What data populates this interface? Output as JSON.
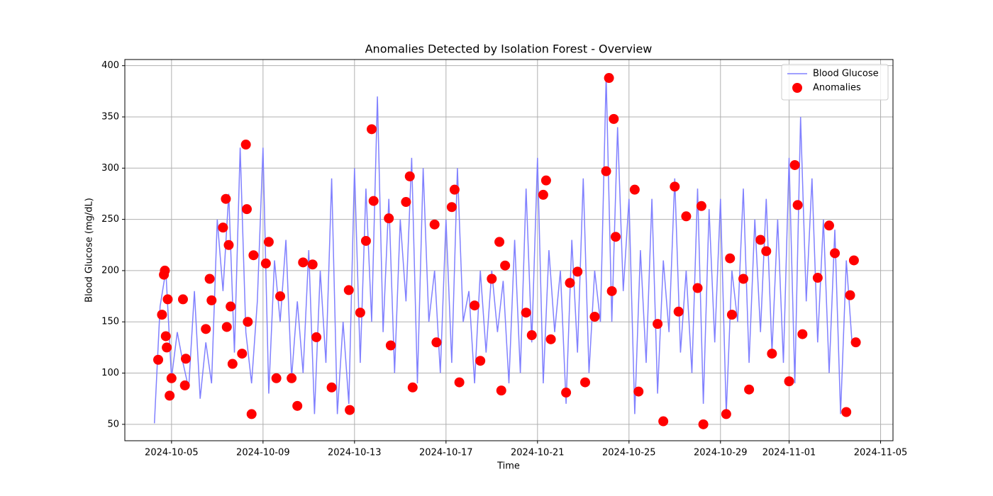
{
  "chart_data": {
    "type": "line",
    "title": "Anomalies Detected by Isolation Forest - Overview",
    "x_label": "Time",
    "y_label": "Blood Glucose (mg/dL)",
    "xlim": [
      "2024-10-02T23:00",
      "2024-11-05T13:00"
    ],
    "ylim": [
      34,
      406
    ],
    "xticks": [
      "2024-10-05",
      "2024-10-09",
      "2024-10-13",
      "2024-10-17",
      "2024-10-21",
      "2024-10-25",
      "2024-10-29",
      "2024-11-01",
      "2024-11-05"
    ],
    "yticks": [
      50,
      100,
      150,
      200,
      250,
      300,
      350,
      400
    ],
    "grid": true,
    "legend": "upper right",
    "series": [
      {
        "name": "Blood Glucose",
        "type": "line",
        "color": "#8080ff",
        "x": [
          "2024-10-04T06:00",
          "2024-10-04T12:00",
          "2024-10-04T18:00",
          "2024-10-05T00:00",
          "2024-10-05T06:00",
          "2024-10-05T12:00",
          "2024-10-05T18:00",
          "2024-10-06T00:00",
          "2024-10-06T06:00",
          "2024-10-06T12:00",
          "2024-10-06T18:00",
          "2024-10-07T00:00",
          "2024-10-07T06:00",
          "2024-10-07T12:00",
          "2024-10-07T18:00",
          "2024-10-08T00:00",
          "2024-10-08T06:00",
          "2024-10-08T12:00",
          "2024-10-08T18:00",
          "2024-10-09T00:00",
          "2024-10-09T06:00",
          "2024-10-09T12:00",
          "2024-10-09T18:00",
          "2024-10-10T00:00",
          "2024-10-10T06:00",
          "2024-10-10T12:00",
          "2024-10-10T18:00",
          "2024-10-11T00:00",
          "2024-10-11T06:00",
          "2024-10-11T12:00",
          "2024-10-11T18:00",
          "2024-10-12T00:00",
          "2024-10-12T06:00",
          "2024-10-12T12:00",
          "2024-10-12T18:00",
          "2024-10-13T00:00",
          "2024-10-13T06:00",
          "2024-10-13T12:00",
          "2024-10-13T18:00",
          "2024-10-14T00:00",
          "2024-10-14T06:00",
          "2024-10-14T12:00",
          "2024-10-14T18:00",
          "2024-10-15T00:00",
          "2024-10-15T06:00",
          "2024-10-15T12:00",
          "2024-10-15T18:00",
          "2024-10-16T00:00",
          "2024-10-16T06:00",
          "2024-10-16T12:00",
          "2024-10-16T18:00",
          "2024-10-17T00:00",
          "2024-10-17T06:00",
          "2024-10-17T12:00",
          "2024-10-17T18:00",
          "2024-10-18T00:00",
          "2024-10-18T06:00",
          "2024-10-18T12:00",
          "2024-10-18T18:00",
          "2024-10-19T00:00",
          "2024-10-19T06:00",
          "2024-10-19T12:00",
          "2024-10-19T18:00",
          "2024-10-20T00:00",
          "2024-10-20T06:00",
          "2024-10-20T12:00",
          "2024-10-20T18:00",
          "2024-10-21T00:00",
          "2024-10-21T06:00",
          "2024-10-21T12:00",
          "2024-10-21T18:00",
          "2024-10-22T00:00",
          "2024-10-22T06:00",
          "2024-10-22T12:00",
          "2024-10-22T18:00",
          "2024-10-23T00:00",
          "2024-10-23T06:00",
          "2024-10-23T12:00",
          "2024-10-23T18:00",
          "2024-10-24T00:00",
          "2024-10-24T06:00",
          "2024-10-24T12:00",
          "2024-10-24T18:00",
          "2024-10-25T00:00",
          "2024-10-25T06:00",
          "2024-10-25T12:00",
          "2024-10-25T18:00",
          "2024-10-26T00:00",
          "2024-10-26T06:00",
          "2024-10-26T12:00",
          "2024-10-26T18:00",
          "2024-10-27T00:00",
          "2024-10-27T06:00",
          "2024-10-27T12:00",
          "2024-10-27T18:00",
          "2024-10-28T00:00",
          "2024-10-28T06:00",
          "2024-10-28T12:00",
          "2024-10-28T18:00",
          "2024-10-29T00:00",
          "2024-10-29T06:00",
          "2024-10-29T12:00",
          "2024-10-29T18:00",
          "2024-10-30T00:00",
          "2024-10-30T06:00",
          "2024-10-30T12:00",
          "2024-10-30T18:00",
          "2024-10-31T00:00",
          "2024-10-31T06:00",
          "2024-10-31T12:00",
          "2024-10-31T18:00",
          "2024-11-01T00:00",
          "2024-11-01T06:00",
          "2024-11-01T12:00",
          "2024-11-01T18:00",
          "2024-11-02T00:00",
          "2024-11-02T06:00",
          "2024-11-02T12:00",
          "2024-11-02T18:00",
          "2024-11-03T00:00",
          "2024-11-03T06:00",
          "2024-11-03T12:00",
          "2024-11-03T18:00"
        ],
        "values": [
          51,
          165,
          200,
          95,
          140,
          110,
          85,
          180,
          75,
          130,
          90,
          250,
          180,
          275,
          120,
          320,
          140,
          90,
          170,
          320,
          80,
          210,
          150,
          230,
          95,
          170,
          100,
          220,
          60,
          200,
          110,
          290,
          60,
          150,
          70,
          300,
          110,
          280,
          150,
          370,
          140,
          270,
          100,
          250,
          170,
          310,
          90,
          300,
          150,
          200,
          100,
          250,
          110,
          300,
          150,
          180,
          90,
          200,
          120,
          200,
          140,
          190,
          90,
          230,
          100,
          280,
          130,
          310,
          90,
          220,
          140,
          200,
          70,
          230,
          120,
          290,
          100,
          200,
          150,
          390,
          150,
          340,
          180,
          270,
          60,
          220,
          110,
          270,
          80,
          210,
          140,
          290,
          120,
          200,
          100,
          280,
          70,
          260,
          130,
          270,
          60,
          200,
          150,
          280,
          110,
          250,
          140,
          270,
          120,
          250,
          110,
          310,
          90,
          350,
          170,
          290,
          130,
          250,
          100,
          240,
          60,
          210,
          130
        ]
      },
      {
        "name": "Anomalies",
        "type": "scatter",
        "color": "#ff0000",
        "x": [
          "2024-10-04T10:00",
          "2024-10-04T14:00",
          "2024-10-04T16:00",
          "2024-10-04T17:00",
          "2024-10-04T18:00",
          "2024-10-04T19:00",
          "2024-10-04T20:00",
          "2024-10-04T22:00",
          "2024-10-05T00:00",
          "2024-10-05T12:00",
          "2024-10-05T14:00",
          "2024-10-05T15:00",
          "2024-10-06T12:00",
          "2024-10-06T16:00",
          "2024-10-06T18:00",
          "2024-10-07T06:00",
          "2024-10-07T09:00",
          "2024-10-07T10:00",
          "2024-10-07T12:00",
          "2024-10-07T14:00",
          "2024-10-07T16:00",
          "2024-10-08T02:00",
          "2024-10-08T06:00",
          "2024-10-08T07:00",
          "2024-10-08T08:00",
          "2024-10-08T12:00",
          "2024-10-08T14:00",
          "2024-10-09T03:00",
          "2024-10-09T06:00",
          "2024-10-09T14:00",
          "2024-10-09T18:00",
          "2024-10-10T06:00",
          "2024-10-10T12:00",
          "2024-10-10T18:00",
          "2024-10-11T04:00",
          "2024-10-11T08:00",
          "2024-10-12T00:00",
          "2024-10-12T18:00",
          "2024-10-12T19:00",
          "2024-10-13T06:00",
          "2024-10-13T12:00",
          "2024-10-13T18:00",
          "2024-10-13T20:00",
          "2024-10-14T12:00",
          "2024-10-14T14:00",
          "2024-10-15T06:00",
          "2024-10-15T10:00",
          "2024-10-15T13:00",
          "2024-10-16T12:00",
          "2024-10-16T14:00",
          "2024-10-17T06:00",
          "2024-10-17T09:00",
          "2024-10-17T14:00",
          "2024-10-18T06:00",
          "2024-10-18T12:00",
          "2024-10-19T00:00",
          "2024-10-19T08:00",
          "2024-10-19T10:00",
          "2024-10-19T14:00",
          "2024-10-20T12:00",
          "2024-10-20T18:00",
          "2024-10-21T06:00",
          "2024-10-21T09:00",
          "2024-10-21T14:00",
          "2024-10-22T06:00",
          "2024-10-22T10:00",
          "2024-10-22T18:00",
          "2024-10-23T02:00",
          "2024-10-23T12:00",
          "2024-10-24T00:00",
          "2024-10-24T03:00",
          "2024-10-24T06:00",
          "2024-10-24T08:00",
          "2024-10-24T10:00",
          "2024-10-25T06:00",
          "2024-10-25T10:00",
          "2024-10-26T06:00",
          "2024-10-26T12:00",
          "2024-10-27T00:00",
          "2024-10-27T04:00",
          "2024-10-27T12:00",
          "2024-10-28T00:00",
          "2024-10-28T04:00",
          "2024-10-28T06:00",
          "2024-10-29T06:00",
          "2024-10-29T10:00",
          "2024-10-29T12:00",
          "2024-10-30T00:00",
          "2024-10-30T06:00",
          "2024-10-30T18:00",
          "2024-10-31T00:00",
          "2024-10-31T06:00",
          "2024-11-01T00:00",
          "2024-11-01T06:00",
          "2024-11-01T09:00",
          "2024-11-01T14:00",
          "2024-11-02T06:00",
          "2024-11-02T18:00",
          "2024-11-03T00:00",
          "2024-11-03T12:00",
          "2024-11-03T16:00",
          "2024-11-03T20:00",
          "2024-11-03T22:00"
        ],
        "values": [
          113,
          157,
          196,
          200,
          136,
          125,
          172,
          78,
          95,
          172,
          88,
          114,
          143,
          192,
          171,
          242,
          270,
          145,
          225,
          165,
          109,
          119,
          323,
          260,
          150,
          60,
          215,
          207,
          228,
          95,
          175,
          95,
          68,
          208,
          206,
          135,
          86,
          181,
          64,
          159,
          229,
          338,
          268,
          251,
          127,
          267,
          292,
          86,
          245,
          130,
          262,
          279,
          91,
          166,
          112,
          192,
          228,
          83,
          205,
          159,
          137,
          274,
          288,
          133,
          81,
          188,
          199,
          91,
          155,
          297,
          388,
          180,
          348,
          233,
          279,
          82,
          148,
          53,
          282,
          160,
          253,
          183,
          263,
          50,
          60,
          212,
          157,
          192,
          84,
          230,
          219,
          119,
          92,
          303,
          264,
          138,
          193,
          244,
          217,
          62,
          176,
          210,
          130
        ]
      }
    ]
  }
}
